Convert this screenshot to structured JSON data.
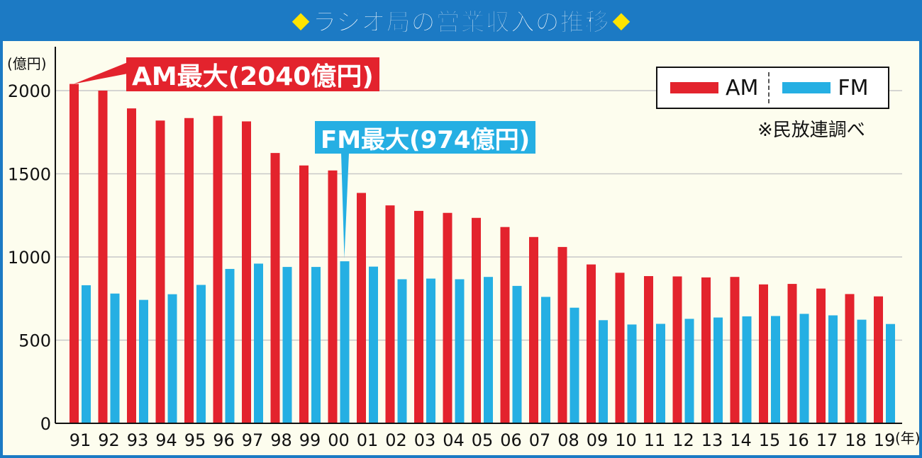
{
  "title": "◆ラジオ局の営業収入の推移◆",
  "title_parts": {
    "left": "◆",
    "main": "ラジオ局の営業収入の推移",
    "right": "◆"
  },
  "unit_y": "(億円)",
  "unit_x": "(年)",
  "source": "※民放連調べ",
  "legend": {
    "am": "AM",
    "fm": "FM"
  },
  "callouts": {
    "am": "AM最大(2040億円)",
    "fm": "FM最大(974億円)"
  },
  "colors": {
    "am": "#e3232d",
    "fm": "#25afe3",
    "frame": "#1c7ac4",
    "diamond": "#ffe400"
  },
  "chart_data": {
    "type": "bar",
    "title": "◆ラジオ局の営業収入の推移◆",
    "xlabel": "(年)",
    "ylabel": "(億円)",
    "ylim": [
      0,
      2000
    ],
    "yticks": [
      0,
      500,
      1000,
      1500,
      2000
    ],
    "grid": true,
    "legend_position": "top-right",
    "categories": [
      "91",
      "92",
      "93",
      "94",
      "95",
      "96",
      "97",
      "98",
      "99",
      "00",
      "01",
      "02",
      "03",
      "04",
      "05",
      "06",
      "07",
      "08",
      "09",
      "10",
      "11",
      "12",
      "13",
      "14",
      "15",
      "16",
      "17",
      "18",
      "19"
    ],
    "series": [
      {
        "name": "AM",
        "color": "#e3232d",
        "values": [
          2040,
          2000,
          1893,
          1820,
          1835,
          1848,
          1815,
          1625,
          1550,
          1520,
          1385,
          1310,
          1277,
          1265,
          1235,
          1180,
          1120,
          1060,
          955,
          905,
          885,
          883,
          877,
          880,
          835,
          838,
          810,
          777,
          763
        ]
      },
      {
        "name": "FM",
        "color": "#25afe3",
        "values": [
          830,
          780,
          742,
          776,
          832,
          928,
          960,
          940,
          940,
          974,
          942,
          866,
          870,
          866,
          880,
          826,
          760,
          695,
          620,
          594,
          598,
          628,
          636,
          643,
          645,
          658,
          649,
          623,
          597
        ]
      }
    ],
    "annotations": [
      {
        "text": "AM最大(2040億円)",
        "series": "AM",
        "category": "91",
        "value": 2040
      },
      {
        "text": "FM最大(974億円)",
        "series": "FM",
        "category": "00",
        "value": 974
      }
    ]
  }
}
